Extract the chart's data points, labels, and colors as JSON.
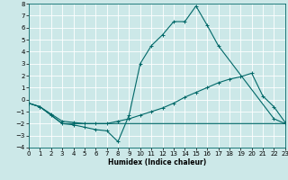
{
  "xlabel": "Humidex (Indice chaleur)",
  "ylabel": "",
  "xlim": [
    0,
    23
  ],
  "ylim": [
    -4,
    8
  ],
  "yticks": [
    -4,
    -3,
    -2,
    -1,
    0,
    1,
    2,
    3,
    4,
    5,
    6,
    7,
    8
  ],
  "xticks": [
    0,
    1,
    2,
    3,
    4,
    5,
    6,
    7,
    8,
    9,
    10,
    11,
    12,
    13,
    14,
    15,
    16,
    17,
    18,
    19,
    20,
    21,
    22,
    23
  ],
  "bg_color": "#cce8e8",
  "line_color": "#006868",
  "grid_color": "#ffffff",
  "line1_x": [
    0,
    1,
    2,
    3,
    4,
    5,
    6,
    7,
    8,
    9,
    10,
    11,
    12,
    13,
    14,
    15,
    16,
    17,
    22,
    23
  ],
  "line1_y": [
    -0.3,
    -0.6,
    -1.3,
    -2.0,
    -2.1,
    -2.3,
    -2.5,
    -2.6,
    -3.5,
    -1.3,
    3.0,
    4.5,
    5.4,
    6.5,
    6.5,
    7.8,
    6.2,
    4.5,
    -1.6,
    -2.0
  ],
  "line2_x": [
    0,
    1,
    2,
    3,
    4,
    5,
    6,
    7,
    8,
    9,
    10,
    11,
    12,
    13,
    14,
    15,
    16,
    17,
    18,
    19,
    20,
    21,
    22,
    23
  ],
  "line2_y": [
    -0.3,
    -0.6,
    -1.2,
    -1.8,
    -1.9,
    -2.0,
    -2.0,
    -2.0,
    -1.8,
    -1.6,
    -1.3,
    -1.0,
    -0.7,
    -0.3,
    0.2,
    0.6,
    1.0,
    1.4,
    1.7,
    1.9,
    2.2,
    0.3,
    -0.6,
    -1.9
  ],
  "line3_x": [
    0,
    1,
    2,
    3,
    4,
    5,
    6,
    7,
    8,
    9,
    10,
    11,
    12,
    13,
    14,
    15,
    16,
    17,
    18,
    19,
    20,
    21,
    22,
    23
  ],
  "line3_y": [
    -0.3,
    -0.6,
    -1.3,
    -2.0,
    -2.0,
    -2.0,
    -2.0,
    -2.0,
    -2.0,
    -2.0,
    -2.0,
    -2.0,
    -2.0,
    -2.0,
    -2.0,
    -2.0,
    -2.0,
    -2.0,
    -2.0,
    -2.0,
    -2.0,
    -2.0,
    -2.0,
    -2.0
  ]
}
